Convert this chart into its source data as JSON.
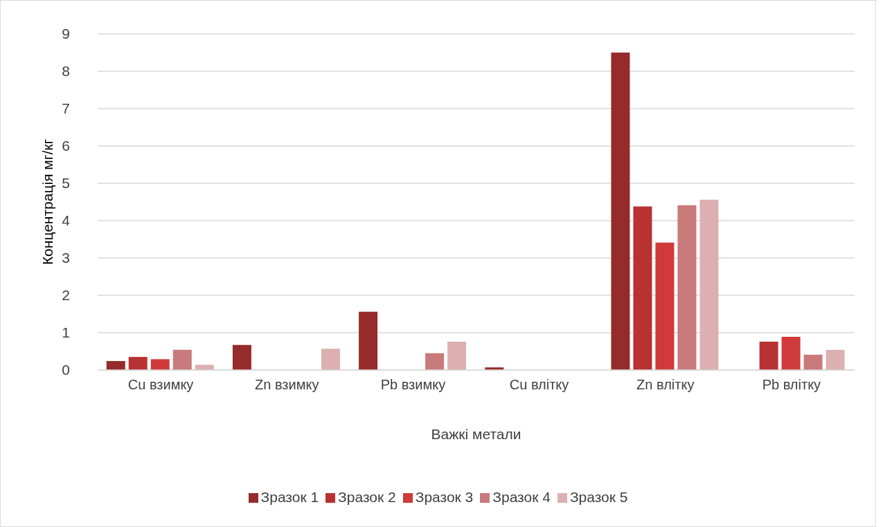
{
  "chart_data": {
    "type": "bar",
    "xlabel": "Важкі метали",
    "ylabel": "Концентрація мг/кг",
    "categories": [
      "Cu взимку",
      "Zn взимку",
      "Pb взимку",
      "Cu влітку",
      "Zn влітку",
      "Pb влітку"
    ],
    "series": [
      {
        "name": "Зразок 1",
        "color": "#962b2b",
        "values": [
          0.24,
          0.67,
          1.56,
          0.07,
          8.5,
          null
        ]
      },
      {
        "name": "Зразок 2",
        "color": "#b83232",
        "values": [
          0.35,
          null,
          null,
          null,
          4.38,
          0.76
        ]
      },
      {
        "name": "Зразок 3",
        "color": "#d03a3a",
        "values": [
          0.29,
          null,
          null,
          null,
          3.41,
          0.89
        ]
      },
      {
        "name": "Зразок 4",
        "color": "#c97a7a",
        "values": [
          0.54,
          null,
          0.45,
          null,
          4.41,
          0.41
        ]
      },
      {
        "name": "Зразок 5",
        "color": "#dcb0b0",
        "values": [
          0.14,
          0.57,
          0.76,
          null,
          4.56,
          0.54
        ]
      }
    ],
    "ylim": [
      0,
      9
    ],
    "yticks": [
      0,
      1,
      2,
      3,
      4,
      5,
      6,
      7,
      8,
      9
    ],
    "grid": "y",
    "legend": "bottom"
  }
}
